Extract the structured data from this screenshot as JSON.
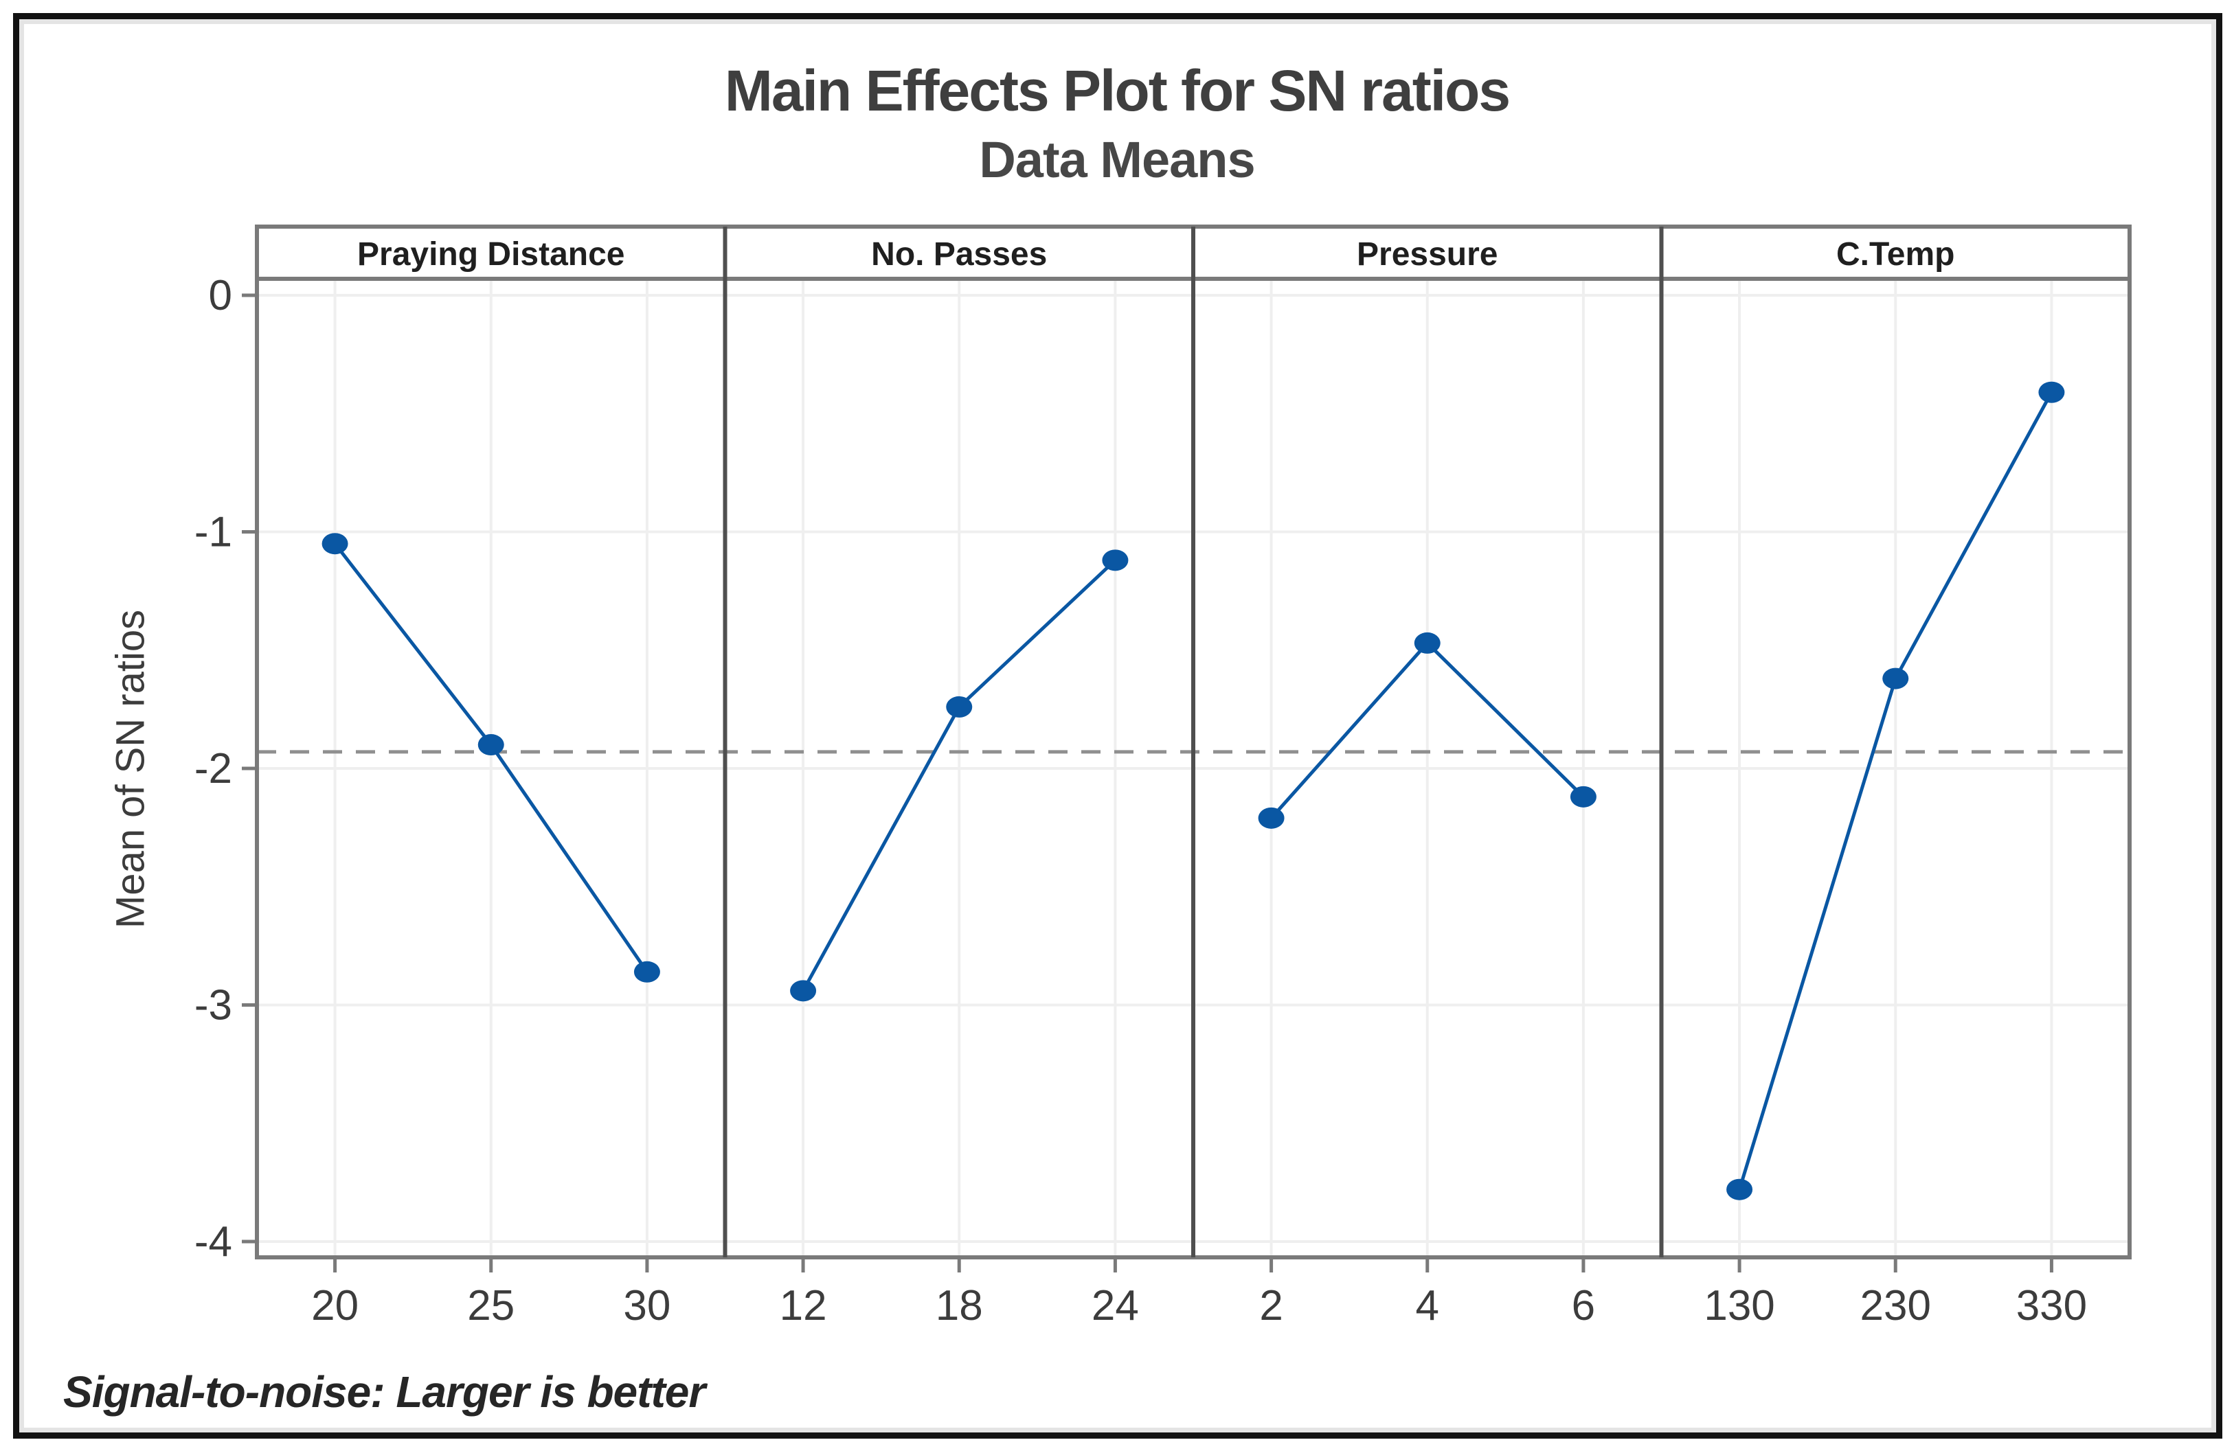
{
  "chart_data": {
    "type": "line",
    "title": "Main Effects Plot for SN ratios",
    "subtitle": "Data Means",
    "ylabel": "Mean of SN ratios",
    "footnote": "Signal-to-noise: Larger is better",
    "yticks": [
      0,
      -1,
      -2,
      -3,
      -4
    ],
    "ylim": [
      -4.07,
      0.29
    ],
    "reference_line_mean": -1.93,
    "reference_style": "dashed",
    "grid": true,
    "legend": "none",
    "panels": [
      {
        "factor": "Praying Distance",
        "levels": [
          "20",
          "25",
          "30"
        ],
        "means": [
          -1.05,
          -1.9,
          -2.86
        ]
      },
      {
        "factor": "No. Passes",
        "levels": [
          "12",
          "18",
          "24"
        ],
        "means": [
          -2.94,
          -1.74,
          -1.12
        ]
      },
      {
        "factor": "Pressure",
        "levels": [
          "2",
          "4",
          "6"
        ],
        "means": [
          -2.21,
          -1.47,
          -2.12
        ]
      },
      {
        "factor": "C.Temp",
        "levels": [
          "130",
          "230",
          "330"
        ],
        "means": [
          -3.78,
          -1.62,
          -0.41
        ]
      }
    ],
    "colors": {
      "series": "#0a57a3",
      "gridline": "#efefef",
      "frame": "#7a7a7a",
      "separator": "#4f4f4f",
      "reference": "#8f8f8f",
      "tick_text": "#3c3c3c",
      "header_text": "#1f1f1f",
      "title_text": "#3f3f3f"
    }
  }
}
